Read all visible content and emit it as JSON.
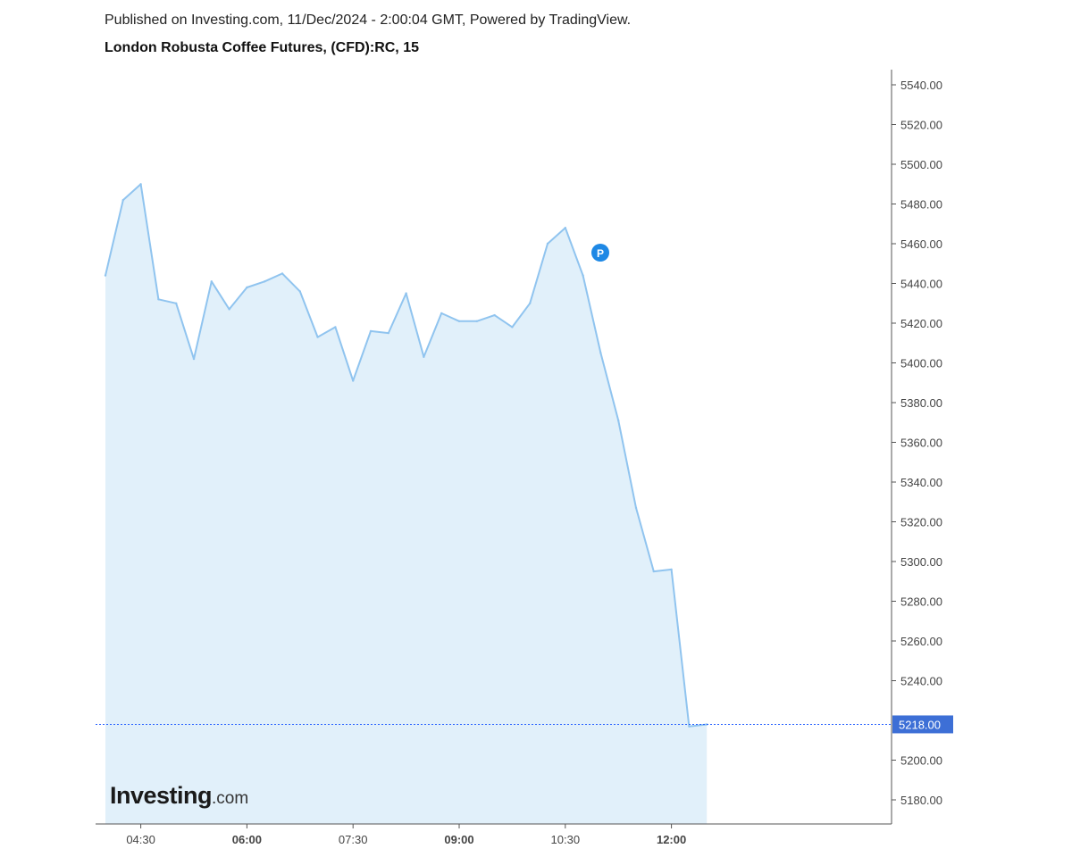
{
  "header": {
    "published": "Published on Investing.com, 11/Dec/2024 - 2:00:04 GMT, Powered by TradingView.",
    "title": "London Robusta Coffee Futures, (CFD):RC, 15"
  },
  "logo": {
    "main": "Investing",
    "suffix": ".com"
  },
  "marker": {
    "label": "P",
    "color": "#1e88e5"
  },
  "colors": {
    "line": "#90c4ef",
    "area": "#e1f0fa",
    "last_price_line": "#2962ff",
    "last_price_badge": "#3d6fd6",
    "axis": "#555555"
  },
  "chart_data": {
    "type": "area",
    "title": "London Robusta Coffee Futures, (CFD):RC, 15",
    "ylim": [
      5167,
      5547
    ],
    "y_ticks": [
      "5540.00",
      "5520.00",
      "5500.00",
      "5480.00",
      "5460.00",
      "5440.00",
      "5420.00",
      "5400.00",
      "5380.00",
      "5360.00",
      "5340.00",
      "5320.00",
      "5300.00",
      "5280.00",
      "5260.00",
      "5240.00",
      "5200.00",
      "5180.00"
    ],
    "x_ticks": [
      {
        "label": "04:30",
        "bold": false
      },
      {
        "label": "06:00",
        "bold": true
      },
      {
        "label": "07:30",
        "bold": false
      },
      {
        "label": "09:00",
        "bold": true
      },
      {
        "label": "10:30",
        "bold": false
      },
      {
        "label": "12:00",
        "bold": true
      }
    ],
    "interval_minutes": 15,
    "first_bar_index_offset": 2,
    "last_price": "5218.00",
    "values": [
      5444,
      5482,
      5490,
      5432,
      5430,
      5402,
      5441,
      5427,
      5438,
      5441,
      5445,
      5436,
      5413,
      5418,
      5391,
      5416,
      5415,
      5435,
      5403,
      5425,
      5421,
      5421,
      5424,
      5418,
      5430,
      5460,
      5468,
      5444,
      5405,
      5371,
      5327,
      5295,
      5296,
      5217,
      5218
    ],
    "legend": "none",
    "grid": false
  }
}
